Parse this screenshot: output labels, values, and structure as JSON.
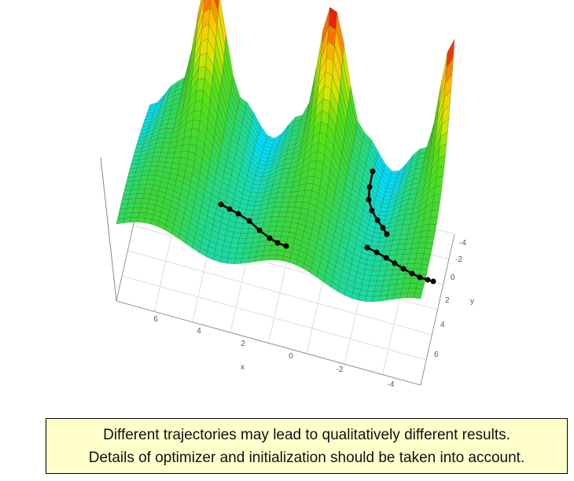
{
  "axes": {
    "x": {
      "title": "x",
      "ticks": [
        "6",
        "4",
        "2",
        "0",
        "-2",
        "-4"
      ]
    },
    "y": {
      "title": "y",
      "ticks": [
        "-4",
        "-2",
        "0",
        "2",
        "4",
        "6"
      ]
    }
  },
  "caption": {
    "lines": [
      "Different trajectories may lead to qualitatively different results.",
      "Details of optimizer and initialization should be taken into account."
    ]
  }
}
